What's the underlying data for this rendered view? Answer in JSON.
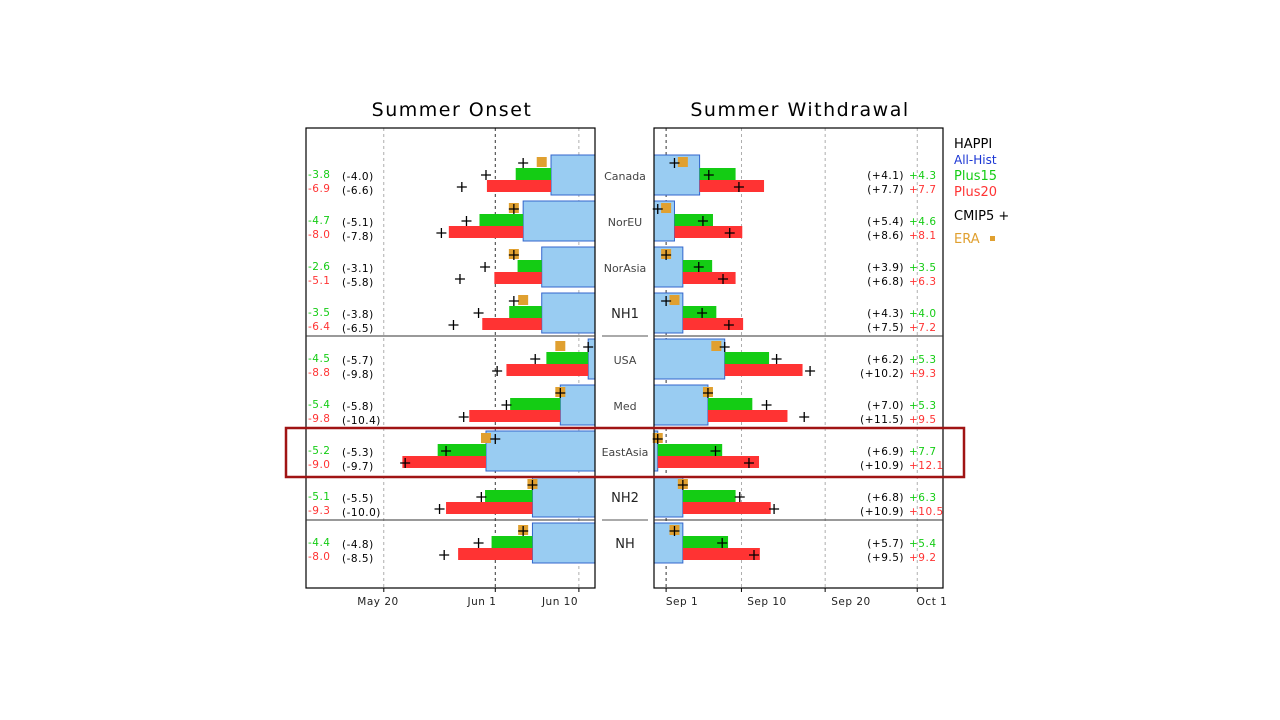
{
  "chart_data": [
    {
      "type": "bar",
      "title": "Summer Onset",
      "xlim": [
        "May 10",
        "Jun 13"
      ],
      "xticks": [
        {
          "date": "May 20",
          "label": "May 20"
        },
        {
          "date": "Jun 1",
          "label": "Jun 1"
        },
        {
          "date": "Jun 10",
          "label": "Jun 10"
        }
      ],
      "reference_line": "Jun 1",
      "legend_placement": "right",
      "rows": [
        {
          "region": "Canada",
          "all_hist": "Jun 7",
          "plus15_shift": -3.8,
          "plus20_shift": -6.9,
          "cmip5_plus15_shift": -4.0,
          "cmip5_plus20_shift": -6.6,
          "era": "Jun 6",
          "cmip5_hist": "Jun 4",
          "labels": {
            "plus15": "-3.8",
            "plus20": "-6.9",
            "cmip5_plus15": "(-4.0)",
            "cmip5_plus20": "(-6.6)"
          }
        },
        {
          "region": "NorEU",
          "all_hist": "Jun 4",
          "plus15_shift": -4.7,
          "plus20_shift": -8.0,
          "cmip5_plus15_shift": -5.1,
          "cmip5_plus20_shift": -7.8,
          "era": "Jun 3",
          "cmip5_hist": "Jun 3",
          "labels": {
            "plus15": "-4.7",
            "plus20": "-8.0",
            "cmip5_plus15": "(-5.1)",
            "cmip5_plus20": "(-7.8)"
          }
        },
        {
          "region": "NorAsia",
          "all_hist": "Jun 6",
          "plus15_shift": -2.6,
          "plus20_shift": -5.1,
          "cmip5_plus15_shift": -3.1,
          "cmip5_plus20_shift": -5.8,
          "era": "Jun 3",
          "cmip5_hist": "Jun 3",
          "labels": {
            "plus15": "-2.6",
            "plus20": "-5.1",
            "cmip5_plus15": "(-3.1)",
            "cmip5_plus20": "(-5.8)"
          }
        },
        {
          "region": "NH1",
          "all_hist": "Jun 6",
          "plus15_shift": -3.5,
          "plus20_shift": -6.4,
          "cmip5_plus15_shift": -3.8,
          "cmip5_plus20_shift": -6.5,
          "era": "Jun 4",
          "cmip5_hist": "Jun 3",
          "labels": {
            "plus15": "-3.5",
            "plus20": "-6.4",
            "cmip5_plus15": "(-3.8)",
            "cmip5_plus20": "(-6.5)"
          }
        },
        {
          "region": "USA",
          "all_hist": "Jun 11",
          "plus15_shift": -4.5,
          "plus20_shift": -8.8,
          "cmip5_plus15_shift": -5.7,
          "cmip5_plus20_shift": -9.8,
          "era": "Jun 8",
          "cmip5_hist": "Jun 11",
          "labels": {
            "plus15": "-4.5",
            "plus20": "-8.8",
            "cmip5_plus15": "(-5.7)",
            "cmip5_plus20": "(-9.8)"
          }
        },
        {
          "region": "Med",
          "all_hist": "Jun 8",
          "plus15_shift": -5.4,
          "plus20_shift": -9.8,
          "cmip5_plus15_shift": -5.8,
          "cmip5_plus20_shift": -10.4,
          "era": "Jun 8",
          "cmip5_hist": "Jun 8",
          "labels": {
            "plus15": "-5.4",
            "plus20": "-9.8",
            "cmip5_plus15": "(-5.8)",
            "cmip5_plus20": "(-10.4)"
          }
        },
        {
          "region": "EastAsia",
          "all_hist": "May 31",
          "plus15_shift": -5.2,
          "plus20_shift": -9.0,
          "cmip5_plus15_shift": -5.3,
          "cmip5_plus20_shift": -9.7,
          "era": "May 31",
          "cmip5_hist": "Jun 1",
          "labels": {
            "plus15": "-5.2",
            "plus20": "-9.0",
            "cmip5_plus15": "(-5.3)",
            "cmip5_plus20": "(-9.7)"
          }
        },
        {
          "region": "NH2",
          "all_hist": "Jun 5",
          "plus15_shift": -5.1,
          "plus20_shift": -9.3,
          "cmip5_plus15_shift": -5.5,
          "cmip5_plus20_shift": -10.0,
          "era": "Jun 5",
          "cmip5_hist": "Jun 5",
          "labels": {
            "plus15": "-5.1",
            "plus20": "-9.3",
            "cmip5_plus15": "(-5.5)",
            "cmip5_plus20": "(-10.0)"
          }
        },
        {
          "region": "NH",
          "all_hist": "Jun 5",
          "plus15_shift": -4.4,
          "plus20_shift": -8.0,
          "cmip5_plus15_shift": -4.8,
          "cmip5_plus20_shift": -8.5,
          "era": "Jun 4",
          "cmip5_hist": "Jun 4",
          "labels": {
            "plus15": "-4.4",
            "plus20": "-8.0",
            "cmip5_plus15": "(-4.8)",
            "cmip5_plus20": "(-8.5)"
          }
        }
      ]
    },
    {
      "type": "bar",
      "title": "Summer Withdrawal",
      "xlim": [
        "Aug 29",
        "Oct 1"
      ],
      "xticks": [
        {
          "date": "Sep 1",
          "label": "Sep 1"
        },
        {
          "date": "Sep 10",
          "label": "Sep 10"
        },
        {
          "date": "Sep 20",
          "label": "Sep 20"
        },
        {
          "date": "Oct 1",
          "label": "Oct 1"
        }
      ],
      "reference_line": "Sep 1",
      "legend_placement": "right",
      "rows": [
        {
          "region": "Canada",
          "all_hist": "Sep 5",
          "plus15_shift": 4.3,
          "plus20_shift": 7.7,
          "cmip5_plus15_shift": 4.1,
          "cmip5_plus20_shift": 7.7,
          "era": "Sep 3",
          "cmip5_hist": "Sep 2",
          "labels": {
            "plus15": "+4.3",
            "plus20": "+7.7",
            "cmip5_plus15": "(+4.1)",
            "cmip5_plus20": "(+7.7)"
          }
        },
        {
          "region": "NorEU",
          "all_hist": "Sep 2",
          "plus15_shift": 4.6,
          "plus20_shift": 8.1,
          "cmip5_plus15_shift": 5.4,
          "cmip5_plus20_shift": 8.6,
          "era": "Sep 1",
          "cmip5_hist": "Aug 31",
          "labels": {
            "plus15": "+4.6",
            "plus20": "+8.1",
            "cmip5_plus15": "(+5.4)",
            "cmip5_plus20": "(+8.6)"
          }
        },
        {
          "region": "NorAsia",
          "all_hist": "Sep 3",
          "plus15_shift": 3.5,
          "plus20_shift": 6.3,
          "cmip5_plus15_shift": 3.9,
          "cmip5_plus20_shift": 6.8,
          "era": "Sep 1",
          "cmip5_hist": "Sep 1",
          "labels": {
            "plus15": "+3.5",
            "plus20": "+6.3",
            "cmip5_plus15": "(+3.9)",
            "cmip5_plus20": "(+6.8)"
          }
        },
        {
          "region": "NH1",
          "all_hist": "Sep 3",
          "plus15_shift": 4.0,
          "plus20_shift": 7.2,
          "cmip5_plus15_shift": 4.3,
          "cmip5_plus20_shift": 7.5,
          "era": "Sep 2",
          "cmip5_hist": "Sep 1",
          "labels": {
            "plus15": "+4.0",
            "plus20": "+7.2",
            "cmip5_plus15": "(+4.3)",
            "cmip5_plus20": "(+7.5)"
          }
        },
        {
          "region": "USA",
          "all_hist": "Sep 8",
          "plus15_shift": 5.3,
          "plus20_shift": 9.3,
          "cmip5_plus15_shift": 6.2,
          "cmip5_plus20_shift": 10.2,
          "era": "Sep 7",
          "cmip5_hist": "Sep 8",
          "labels": {
            "plus15": "+5.3",
            "plus20": "+9.3",
            "cmip5_plus15": "(+6.2)",
            "cmip5_plus20": "(+10.2)"
          }
        },
        {
          "region": "Med",
          "all_hist": "Sep 6",
          "plus15_shift": 5.3,
          "plus20_shift": 9.5,
          "cmip5_plus15_shift": 7.0,
          "cmip5_plus20_shift": 11.5,
          "era": "Sep 6",
          "cmip5_hist": "Sep 6",
          "labels": {
            "plus15": "+5.3",
            "plus20": "+9.5",
            "cmip5_plus15": "(+7.0)",
            "cmip5_plus20": "(+11.5)"
          }
        },
        {
          "region": "EastAsia",
          "all_hist": "Aug 31",
          "plus15_shift": 7.7,
          "plus20_shift": 12.1,
          "cmip5_plus15_shift": 6.9,
          "cmip5_plus20_shift": 10.9,
          "era": "Aug 31",
          "cmip5_hist": "Aug 31",
          "labels": {
            "plus15": "+7.7",
            "plus20": "+12.1",
            "cmip5_plus15": "(+6.9)",
            "cmip5_plus20": "(+10.9)"
          }
        },
        {
          "region": "NH2",
          "all_hist": "Sep 3",
          "plus15_shift": 6.3,
          "plus20_shift": 10.5,
          "cmip5_plus15_shift": 6.8,
          "cmip5_plus20_shift": 10.9,
          "era": "Sep 3",
          "cmip5_hist": "Sep 3",
          "labels": {
            "plus15": "+6.3",
            "plus20": "+10.5",
            "cmip5_plus15": "(+6.8)",
            "cmip5_plus20": "(+10.9)"
          }
        },
        {
          "region": "NH",
          "all_hist": "Sep 3",
          "plus15_shift": 5.4,
          "plus20_shift": 9.2,
          "cmip5_plus15_shift": 5.7,
          "cmip5_plus20_shift": 9.5,
          "era": "Sep 2",
          "cmip5_hist": "Sep 2",
          "labels": {
            "plus15": "+5.4",
            "plus20": "+9.2",
            "cmip5_plus15": "(+5.7)",
            "cmip5_plus20": "(+9.5)"
          }
        }
      ]
    }
  ],
  "legend": {
    "title": "HAPPI",
    "items": [
      {
        "label": "All-Hist",
        "color": "#1a35d4"
      },
      {
        "label": "Plus15",
        "color": "#14cc14"
      },
      {
        "label": "Plus20",
        "color": "#ff3333"
      },
      {
        "label": "CMIP5 +",
        "color": "#000000",
        "marker": "plus"
      },
      {
        "label": "ERA",
        "color": "#e0a030",
        "marker": "square"
      }
    ]
  },
  "highlighted_region": "EastAsia",
  "colors": {
    "all_hist": "#99ccf2",
    "all_hist_edge": "#3366cc",
    "plus15": "#14cc14",
    "plus20": "#ff3333",
    "era": "#e0a030",
    "highlight": "#a01414",
    "grid": "#9a9a9a"
  }
}
